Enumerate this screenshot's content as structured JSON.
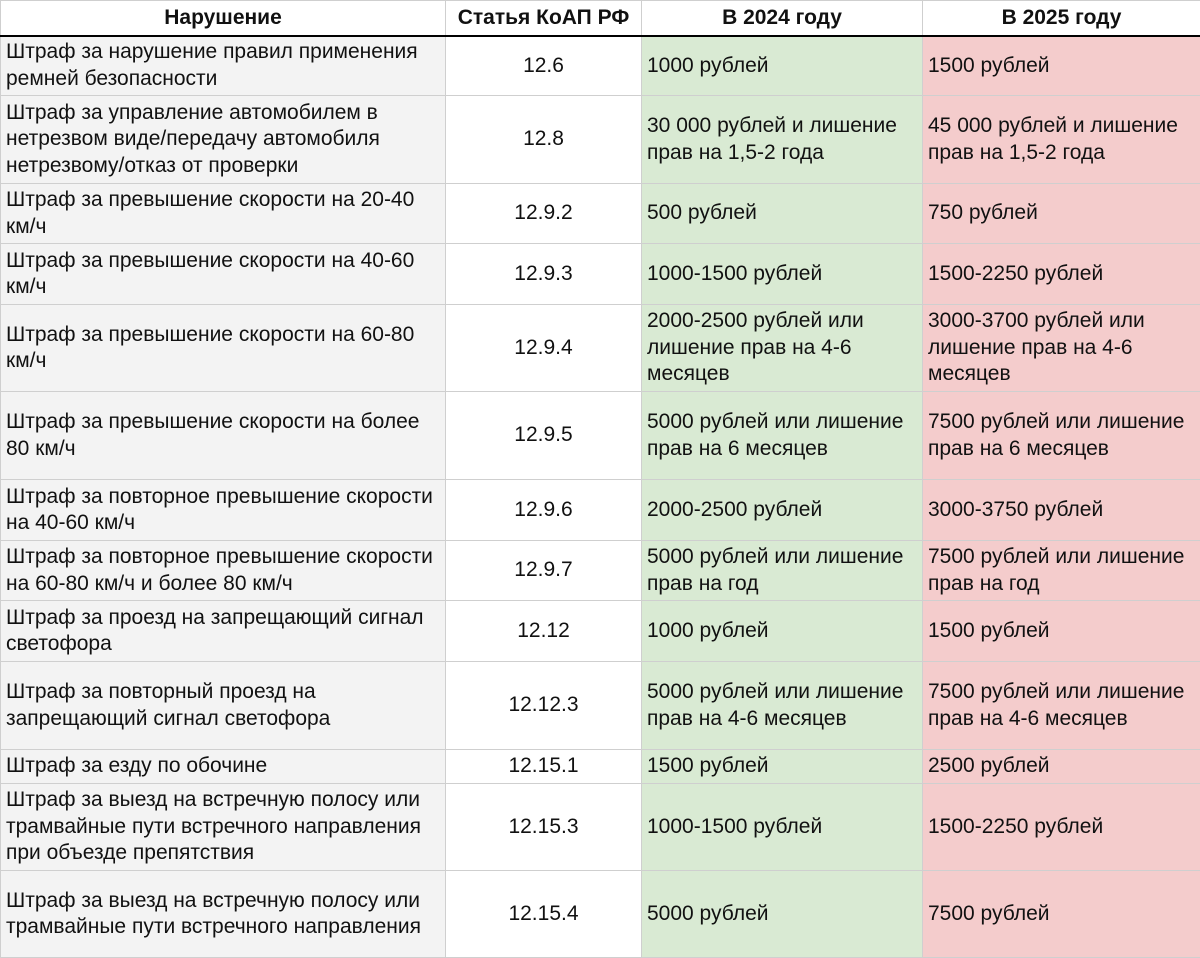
{
  "table": {
    "header": [
      "Нарушение",
      "Статья КоАП РФ",
      "В 2024 году",
      "В 2025 году"
    ],
    "rows": [
      [
        "Штраф за нарушение правил применения ремней безопасности",
        "12.6",
        "1000 рублей",
        "1500 рублей"
      ],
      [
        "Штраф за управление автомобилем в нетрезвом виде/передачу автомобиля нетрезвому/отказ от проверки",
        "12.8",
        "30 000 рублей и лишение прав на 1,5-2 года",
        "45 000 рублей и лишение прав на 1,5-2 года"
      ],
      [
        "Штраф за превышение скорости на 20-40 км/ч",
        "12.9.2",
        "500 рублей",
        "750 рублей"
      ],
      [
        "Штраф за превышение скорости на 40-60 км/ч",
        "12.9.3",
        "1000-1500 рублей",
        "1500-2250 рублей"
      ],
      [
        "Штраф за превышение скорости на 60-80 км/ч",
        "12.9.4",
        "2000-2500 рублей или лишение прав на 4-6 месяцев",
        "3000-3700 рублей или лишение прав на 4-6 месяцев"
      ],
      [
        "Штраф за превышение скорости на более 80 км/ч",
        "12.9.5",
        "5000 рублей или лишение прав на 6 месяцев",
        "7500 рублей или лишение прав на 6 месяцев"
      ],
      [
        "Штраф за повторное превышение скорости на 40-60 км/ч",
        "12.9.6",
        "2000-2500 рублей",
        "3000-3750 рублей"
      ],
      [
        "Штраф за повторное превышение скорости на 60-80 км/ч и более 80 км/ч",
        "12.9.7",
        "5000 рублей или лишение прав на год",
        "7500 рублей или лишение прав на год"
      ],
      [
        "Штраф за проезд на запрещающий сигнал светофора",
        "12.12",
        "1000 рублей",
        "1500 рублей"
      ],
      [
        "Штраф за повторный проезд на запрещающий сигнал светофора",
        "12.12.3",
        "5000 рублей или лишение прав на 4-6 месяцев",
        "7500 рублей или лишение прав на 4-6 месяцев"
      ],
      [
        "Штраф за езду по обочине",
        "12.15.1",
        "1500 рублей",
        "2500 рублей"
      ],
      [
        "Штраф за выезд на встречную полосу или трамвайные пути встречного направления при объезде препятствия",
        "12.15.3",
        "1000-1500 рублей",
        "1500-2250 рублей"
      ],
      [
        "Штраф за выезд на встречную полосу или трамвайные пути встречного направления",
        "12.15.4",
        "5000 рублей",
        "7500 рублей"
      ]
    ]
  }
}
